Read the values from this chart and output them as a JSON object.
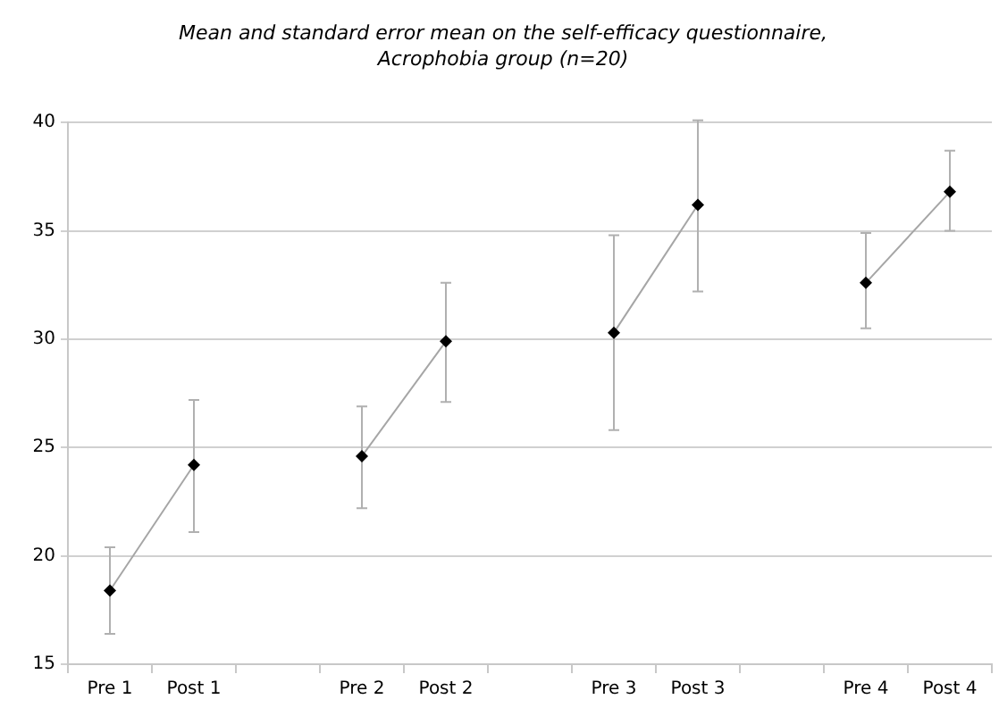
{
  "chart_data": {
    "type": "line",
    "title": "Mean and standard error mean on the self-efficacy questionnaire,\nAcrophobia group (n=20)",
    "categories": [
      "Pre 1",
      "Post 1",
      null,
      "Pre 2",
      "Post 2",
      null,
      "Pre 3",
      "Post 3",
      null,
      "Pre 4",
      "Post 4"
    ],
    "series": [
      {
        "color": "#a6a6a6",
        "values": [
          18.4,
          24.2,
          null,
          24.6,
          29.9,
          null,
          30.3,
          36.2,
          null,
          32.6,
          36.8
        ],
        "errors": [
          [
            16.4,
            20.4
          ],
          [
            21.1,
            27.2
          ],
          null,
          [
            22.2,
            26.9
          ],
          [
            27.1,
            32.6
          ],
          null,
          [
            25.8,
            34.8
          ],
          [
            32.2,
            40.1
          ],
          null,
          [
            30.5,
            34.9
          ],
          [
            35.0,
            38.7
          ]
        ]
      }
    ],
    "ylim": [
      15,
      40
    ],
    "yticks": [
      15,
      20,
      25,
      30,
      35,
      40
    ],
    "grid": "y",
    "legend": false,
    "marker": "diamond",
    "line_style": "solid"
  }
}
